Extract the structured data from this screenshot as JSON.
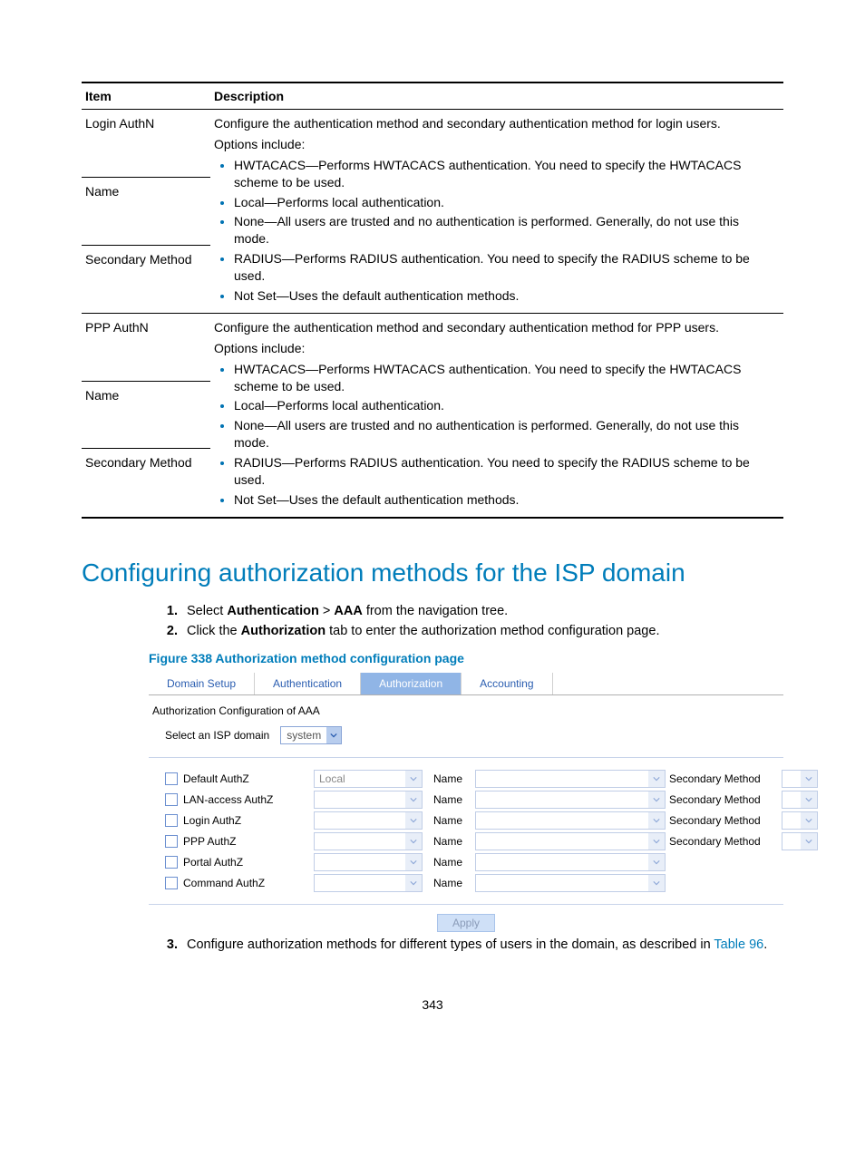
{
  "table": {
    "headers": [
      "Item",
      "Description"
    ],
    "group1": {
      "r1": "Login AuthN",
      "r2": "Name",
      "r3": "Secondary Method",
      "desc_intro": "Configure the authentication method and secondary authentication method for login users.",
      "opts_label": "Options include:",
      "opts": [
        "HWTACACS—Performs HWTACACS authentication. You need to specify the HWTACACS scheme to be used.",
        "Local—Performs local authentication.",
        "None—All users are trusted and no authentication is performed. Generally, do not use this mode.",
        "RADIUS—Performs RADIUS authentication. You need to specify the RADIUS scheme to be used.",
        "Not Set—Uses the default authentication methods."
      ]
    },
    "group2": {
      "r1": "PPP AuthN",
      "r2": "Name",
      "r3": "Secondary Method",
      "desc_intro": "Configure the authentication method and secondary authentication method for PPP users.",
      "opts_label": "Options include:",
      "opts": [
        "HWTACACS—Performs HWTACACS authentication. You need to specify the HWTACACS scheme to be used.",
        "Local—Performs local authentication.",
        "None—All users are trusted and no authentication is performed. Generally, do not use this mode.",
        "RADIUS—Performs RADIUS authentication. You need to specify the RADIUS scheme to be used.",
        "Not Set—Uses the default authentication methods."
      ]
    }
  },
  "section_title": "Configuring authorization methods for the ISP domain",
  "steps": {
    "s1_pre": "Select ",
    "s1_b1": "Authentication",
    "s1_mid": " > ",
    "s1_b2": "AAA",
    "s1_post": " from the navigation tree.",
    "s2_pre": "Click the ",
    "s2_b": "Authorization",
    "s2_post": " tab to enter the authorization method configuration page.",
    "s3_pre": "Configure authorization methods for different types of users in the domain, as described in ",
    "s3_link": "Table 96",
    "s3_post": "."
  },
  "figure_caption": "Figure 338 Authorization method configuration page",
  "ui": {
    "tabs": [
      "Domain Setup",
      "Authentication",
      "Authorization",
      "Accounting"
    ],
    "active_tab_index": 2,
    "subheading": "Authorization Configuration of AAA",
    "isp_label": "Select an ISP domain",
    "isp_value": "system",
    "rows": [
      {
        "label": "Default AuthZ",
        "method": "Local",
        "name_label": "Name",
        "secondary": "Secondary Method",
        "has_secondary": true
      },
      {
        "label": "LAN-access AuthZ",
        "method": "",
        "name_label": "Name",
        "secondary": "Secondary Method",
        "has_secondary": true
      },
      {
        "label": "Login AuthZ",
        "method": "",
        "name_label": "Name",
        "secondary": "Secondary Method",
        "has_secondary": true
      },
      {
        "label": "PPP AuthZ",
        "method": "",
        "name_label": "Name",
        "secondary": "Secondary Method",
        "has_secondary": true
      },
      {
        "label": "Portal AuthZ",
        "method": "",
        "name_label": "Name",
        "secondary": "",
        "has_secondary": false
      },
      {
        "label": "Command AuthZ",
        "method": "",
        "name_label": "Name",
        "secondary": "",
        "has_secondary": false
      }
    ],
    "apply_label": "Apply"
  },
  "pagenum": "343",
  "colors": {
    "brand_blue": "#007dba",
    "tab_active_bg": "#90b5e6",
    "dropdown_arrow_bg": "#b8cdee"
  }
}
